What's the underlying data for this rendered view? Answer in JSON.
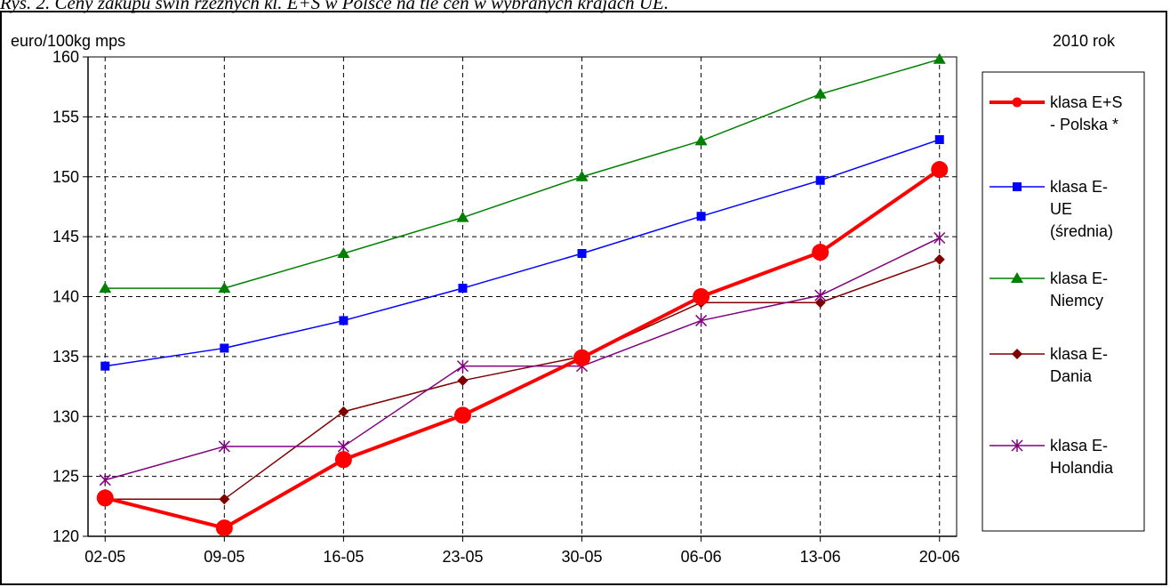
{
  "caption": "Rys. 2. Ceny zakupu świń rzeźnych kl. E+S w Polsce na tle cen w wybranych krajach UE.",
  "chart_data": {
    "type": "line",
    "title": "",
    "ylabel": "euro/100kg mps",
    "year_label": "2010 rok",
    "xlabel": "",
    "categories": [
      "02-05",
      "09-05",
      "16-05",
      "23-05",
      "30-05",
      "06-06",
      "13-06",
      "20-06"
    ],
    "ylim": [
      120,
      160
    ],
    "yticks": [
      "120",
      "125",
      "130",
      "135",
      "140",
      "145",
      "150",
      "155",
      "160"
    ],
    "grid": true,
    "legend_position": "right",
    "series": [
      {
        "name": "klasa E+S - Polska *",
        "legend_lines": [
          "klasa E+S",
          "- Polska *"
        ],
        "color": "#ff0000",
        "marker": "circle",
        "bold": true,
        "values": [
          123.2,
          120.7,
          126.4,
          130.1,
          134.9,
          140.0,
          143.7,
          150.6
        ]
      },
      {
        "name": "klasa E- UE (średnia)",
        "legend_lines": [
          "klasa E-",
          "UE",
          "(średnia)"
        ],
        "color": "#0000ff",
        "marker": "square",
        "values": [
          134.2,
          135.7,
          138.0,
          140.7,
          143.6,
          146.7,
          149.7,
          153.1
        ]
      },
      {
        "name": "klasa E- Niemcy",
        "legend_lines": [
          "klasa E-",
          "Niemcy"
        ],
        "color": "#008000",
        "marker": "triangle",
        "values": [
          140.7,
          140.7,
          143.6,
          146.6,
          150.0,
          153.0,
          156.9,
          159.8
        ]
      },
      {
        "name": "klasa E- Dania",
        "legend_lines": [
          "klasa E-",
          "Dania"
        ],
        "color": "#800000",
        "marker": "diamond",
        "values": [
          123.1,
          123.1,
          130.4,
          133.0,
          135.0,
          139.5,
          139.5,
          143.1
        ]
      },
      {
        "name": "klasa E- Holandia",
        "legend_lines": [
          "klasa E-",
          "Holandia"
        ],
        "color": "#800080",
        "marker": "star",
        "values": [
          124.7,
          127.5,
          127.5,
          134.2,
          134.2,
          138.0,
          140.1,
          144.9
        ]
      }
    ]
  }
}
